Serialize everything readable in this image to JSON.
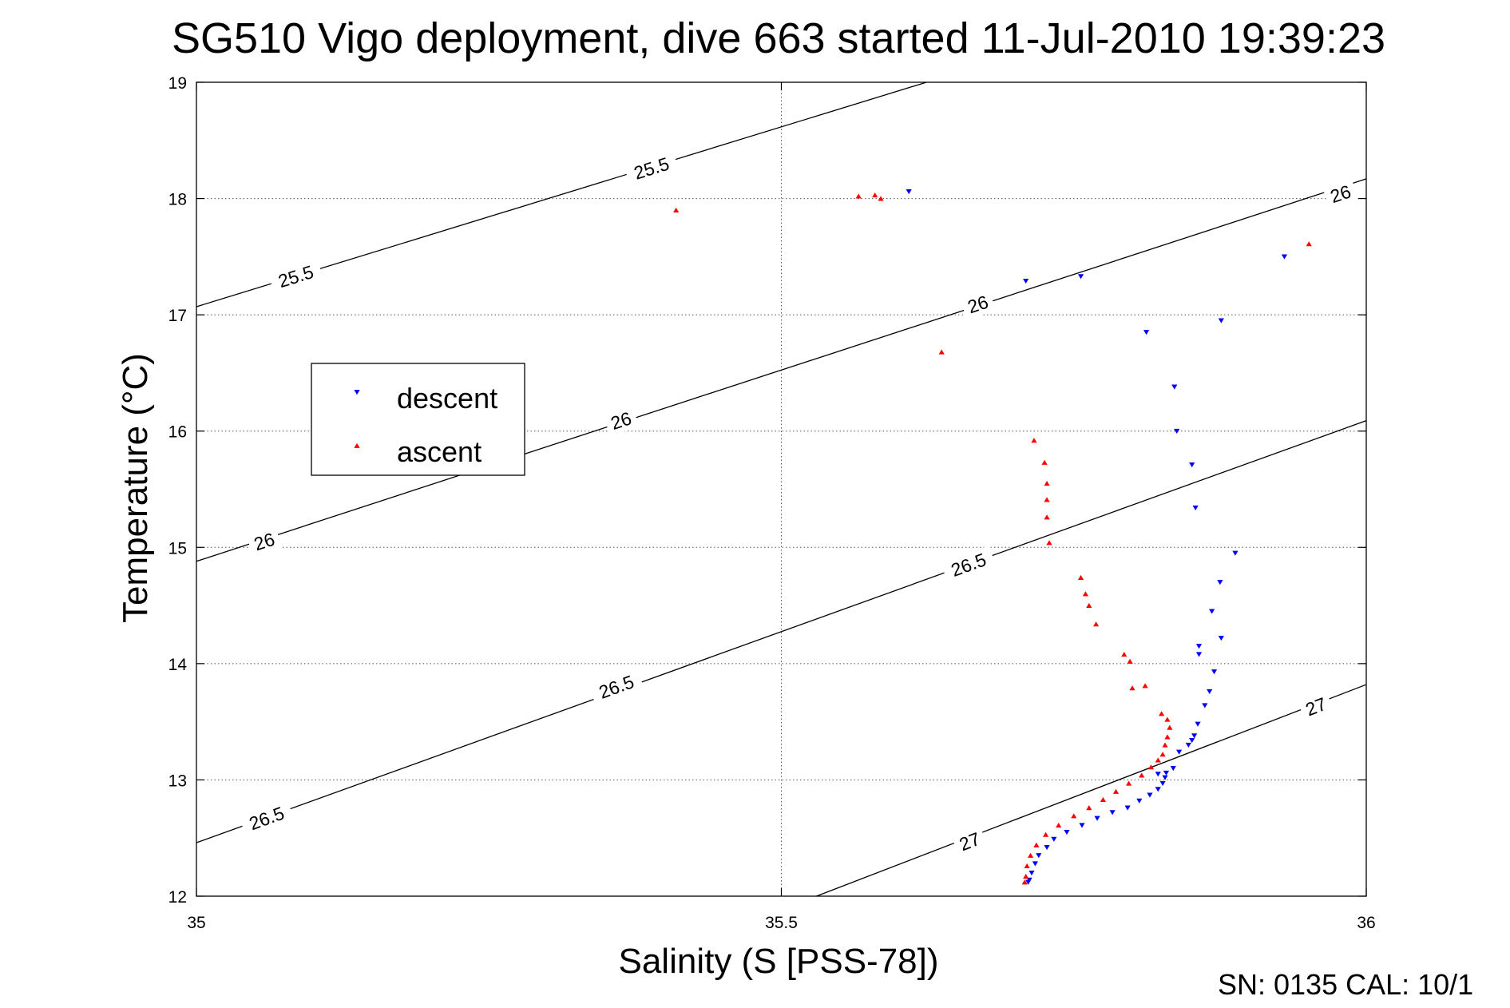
{
  "chart_data": {
    "type": "scatter",
    "title": "SG510 Vigo deployment, dive 663 started 11-Jul-2010 19:39:23",
    "xlabel": "Salinity (S [PSS-78])",
    "ylabel": "Temperature (°C)",
    "xlim": [
      35,
      36
    ],
    "ylim": [
      12,
      19
    ],
    "xticks": [
      "35",
      "35.5",
      "36"
    ],
    "yticks": [
      "12",
      "13",
      "14",
      "15",
      "16",
      "17",
      "18",
      "19"
    ],
    "grid": true,
    "legend_position": "left",
    "footer": "SN: 0135  CAL: 10/1",
    "series": [
      {
        "name": "descent",
        "color": "#0000ff",
        "marker": "triangle-down",
        "points": [
          [
            35.609,
            18.06
          ],
          [
            35.709,
            17.29
          ],
          [
            35.756,
            17.33
          ],
          [
            35.812,
            16.85
          ],
          [
            35.876,
            16.95
          ],
          [
            35.93,
            17.5
          ],
          [
            35.836,
            16.38
          ],
          [
            35.838,
            16.0
          ],
          [
            35.851,
            15.71
          ],
          [
            35.854,
            15.34
          ],
          [
            35.888,
            14.95
          ],
          [
            35.875,
            14.7
          ],
          [
            35.868,
            14.45
          ],
          [
            35.876,
            14.22
          ],
          [
            35.857,
            14.15
          ],
          [
            35.857,
            14.08
          ],
          [
            35.87,
            13.93
          ],
          [
            35.866,
            13.76
          ],
          [
            35.862,
            13.64
          ],
          [
            35.856,
            13.48
          ],
          [
            35.853,
            13.38
          ],
          [
            35.851,
            13.34
          ],
          [
            35.848,
            13.3
          ],
          [
            35.84,
            13.24
          ],
          [
            35.835,
            13.1
          ],
          [
            35.829,
            13.06
          ],
          [
            35.822,
            13.05
          ],
          [
            35.828,
            13.02
          ],
          [
            35.826,
            12.97
          ],
          [
            35.822,
            12.92
          ],
          [
            35.815,
            12.87
          ],
          [
            35.806,
            12.82
          ],
          [
            35.796,
            12.76
          ],
          [
            35.783,
            12.72
          ],
          [
            35.77,
            12.67
          ],
          [
            35.757,
            12.61
          ],
          [
            35.744,
            12.55
          ],
          [
            35.733,
            12.49
          ],
          [
            35.727,
            12.42
          ],
          [
            35.72,
            12.35
          ],
          [
            35.717,
            12.28
          ],
          [
            35.714,
            12.2
          ],
          [
            35.712,
            12.14
          ],
          [
            35.711,
            12.12
          ]
        ]
      },
      {
        "name": "ascent",
        "color": "#ff0000",
        "marker": "triangle-up",
        "points": [
          [
            35.41,
            17.9
          ],
          [
            35.566,
            18.02
          ],
          [
            35.58,
            18.03
          ],
          [
            35.585,
            18.0
          ],
          [
            35.951,
            17.61
          ],
          [
            35.637,
            16.68
          ],
          [
            35.716,
            15.92
          ],
          [
            35.725,
            15.73
          ],
          [
            35.727,
            15.55
          ],
          [
            35.727,
            15.41
          ],
          [
            35.727,
            15.26
          ],
          [
            35.729,
            15.04
          ],
          [
            35.756,
            14.74
          ],
          [
            35.76,
            14.6
          ],
          [
            35.763,
            14.5
          ],
          [
            35.769,
            14.34
          ],
          [
            35.793,
            14.08
          ],
          [
            35.798,
            14.02
          ],
          [
            35.8,
            13.79
          ],
          [
            35.811,
            13.81
          ],
          [
            35.825,
            13.57
          ],
          [
            35.83,
            13.52
          ],
          [
            35.832,
            13.45
          ],
          [
            35.83,
            13.37
          ],
          [
            35.828,
            13.3
          ],
          [
            35.826,
            13.22
          ],
          [
            35.822,
            13.17
          ],
          [
            35.816,
            13.11
          ],
          [
            35.808,
            13.04
          ],
          [
            35.797,
            12.97
          ],
          [
            35.786,
            12.9
          ],
          [
            35.775,
            12.83
          ],
          [
            35.763,
            12.76
          ],
          [
            35.75,
            12.69
          ],
          [
            35.737,
            12.61
          ],
          [
            35.726,
            12.53
          ],
          [
            35.718,
            12.44
          ],
          [
            35.713,
            12.35
          ],
          [
            35.71,
            12.26
          ],
          [
            35.709,
            12.17
          ],
          [
            35.708,
            12.12
          ]
        ]
      }
    ],
    "isopycnals": [
      {
        "sigma": 25.5,
        "label": "25.5",
        "line": [
          [
            35,
            17.07
          ],
          [
            35.624,
            19.0
          ]
        ],
        "label_at": [
          [
            35.085,
            17.33
          ],
          [
            35.389,
            18.26
          ]
        ]
      },
      {
        "sigma": 26,
        "label": "26",
        "line": [
          [
            35,
            14.88
          ],
          [
            36,
            18.17
          ]
        ],
        "label_at": [
          [
            35.058,
            15.05
          ],
          [
            35.363,
            16.09
          ],
          [
            35.668,
            17.09
          ],
          [
            35.978,
            18.04
          ]
        ]
      },
      {
        "sigma": 26.5,
        "label": "26.5",
        "line": [
          [
            35,
            12.46
          ],
          [
            36,
            16.09
          ]
        ],
        "label_at": [
          [
            35.06,
            12.67
          ],
          [
            35.359,
            13.8
          ],
          [
            35.66,
            14.85
          ]
        ]
      },
      {
        "sigma": 27,
        "label": "27",
        "line": [
          [
            35.53,
            12.0
          ],
          [
            36,
            13.82
          ]
        ],
        "label_at": [
          [
            35.661,
            12.47
          ],
          [
            35.957,
            13.63
          ]
        ]
      }
    ]
  }
}
